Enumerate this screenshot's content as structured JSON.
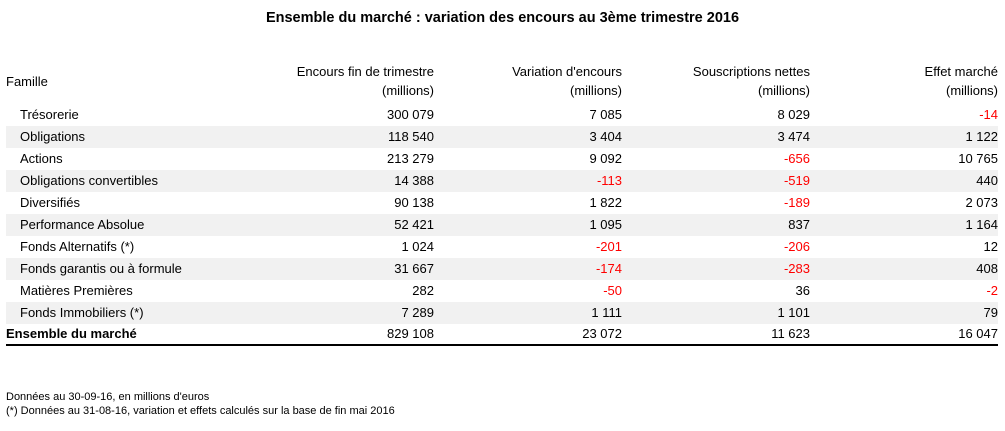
{
  "title": "Ensemble du marché : variation des encours au 3ème trimestre 2016",
  "headers": {
    "famille": "Famille",
    "encours": [
      "Encours fin de trimestre",
      "(millions)"
    ],
    "variation": [
      "Variation d'encours",
      "(millions)"
    ],
    "souscriptions": [
      "Souscriptions nettes",
      "(millions)"
    ],
    "effet": [
      "Effet marché",
      "(millions)"
    ]
  },
  "rows": [
    {
      "famille": "Trésorerie",
      "encours": "300 079",
      "variation": "7 085",
      "souscriptions": "8 029",
      "effet": "-14"
    },
    {
      "famille": "Obligations",
      "encours": "118 540",
      "variation": "3 404",
      "souscriptions": "3 474",
      "effet": "1 122"
    },
    {
      "famille": "Actions",
      "encours": "213 279",
      "variation": "9 092",
      "souscriptions": "-656",
      "effet": "10 765"
    },
    {
      "famille": "Obligations convertibles",
      "encours": "14 388",
      "variation": "-113",
      "souscriptions": "-519",
      "effet": "440"
    },
    {
      "famille": "Diversifiés",
      "encours": "90 138",
      "variation": "1 822",
      "souscriptions": "-189",
      "effet": "2 073"
    },
    {
      "famille": "Performance Absolue",
      "encours": "52 421",
      "variation": "1 095",
      "souscriptions": "837",
      "effet": "1 164"
    },
    {
      "famille": "Fonds Alternatifs (*)",
      "encours": "1 024",
      "variation": "-201",
      "souscriptions": "-206",
      "effet": "12"
    },
    {
      "famille": "Fonds garantis ou à formule",
      "encours": "31 667",
      "variation": "-174",
      "souscriptions": "-283",
      "effet": "408"
    },
    {
      "famille": "Matières Premières",
      "encours": "282",
      "variation": "-50",
      "souscriptions": "36",
      "effet": "-2"
    },
    {
      "famille": "Fonds Immobiliers (*)",
      "encours": "7 289",
      "variation": "1 111",
      "souscriptions": "1 101",
      "effet": "79"
    }
  ],
  "total": {
    "famille": "Ensemble du marché",
    "encours": "829 108",
    "variation": "23 072",
    "souscriptions": "11 623",
    "effet": "16 047"
  },
  "notes": [
    "Données au 30-09-16, en millions d'euros",
    "(*) Données au 31-08-16, variation et effets calculés sur la base de fin mai 2016"
  ],
  "colors": {
    "negative": "#ff0000",
    "stripe": "#f1f1f1"
  }
}
